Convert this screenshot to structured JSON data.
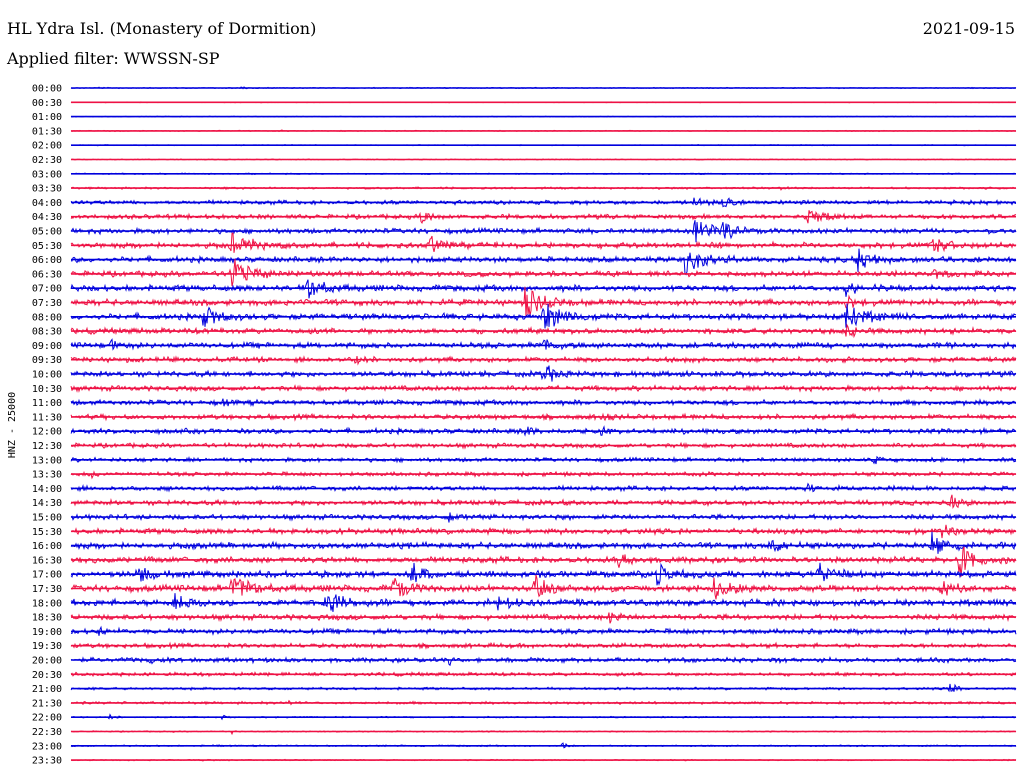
{
  "header": {
    "station": "HL Ydra Isl. (Monastery of Dormition)",
    "date": "2021-09-15",
    "filter": "Applied filter: WWSSN-SP"
  },
  "chart_data": {
    "type": "line",
    "ylabel": "HNZ - 25000",
    "colors": [
      "#0000dd",
      "#ee1144"
    ],
    "rows": [
      {
        "label": "00:00",
        "noise": 0.4,
        "events": [
          [
            0.03,
            0.25,
            6
          ],
          [
            0.18,
            0.45,
            8
          ]
        ]
      },
      {
        "label": "00:30",
        "noise": 0.3,
        "events": [
          [
            0.17,
            0.25,
            3
          ]
        ]
      },
      {
        "label": "01:00",
        "noise": 0.3,
        "events": []
      },
      {
        "label": "01:30",
        "noise": 0.4,
        "events": [
          [
            0.22,
            0.3,
            5
          ]
        ]
      },
      {
        "label": "02:00",
        "noise": 0.4,
        "events": []
      },
      {
        "label": "02:30",
        "noise": 0.4,
        "events": [
          [
            0.93,
            0.2,
            4
          ]
        ]
      },
      {
        "label": "03:00",
        "noise": 0.5,
        "events": [
          [
            0.12,
            0.2,
            4
          ]
        ]
      },
      {
        "label": "03:30",
        "noise": 0.8,
        "events": [
          [
            0.16,
            0.5,
            6
          ],
          [
            0.75,
            0.5,
            6
          ],
          [
            0.92,
            0.3,
            4
          ]
        ]
      },
      {
        "label": "04:00",
        "noise": 1.6,
        "events": [
          [
            0.66,
            3.5,
            8
          ],
          [
            0.69,
            3.0,
            8
          ]
        ]
      },
      {
        "label": "04:30",
        "noise": 1.8,
        "events": [
          [
            0.37,
            3.0,
            10
          ],
          [
            0.78,
            4.0,
            12
          ]
        ]
      },
      {
        "label": "05:00",
        "noise": 2.0,
        "events": [
          [
            0.66,
            6.0,
            15
          ],
          [
            0.69,
            4.0,
            12
          ]
        ]
      },
      {
        "label": "05:30",
        "noise": 2.2,
        "events": [
          [
            0.17,
            9.0,
            14
          ],
          [
            0.38,
            5.0,
            12
          ],
          [
            0.91,
            5.0,
            12
          ]
        ]
      },
      {
        "label": "06:00",
        "noise": 2.2,
        "events": [
          [
            0.65,
            8.0,
            16
          ],
          [
            0.83,
            6.0,
            14
          ]
        ]
      },
      {
        "label": "06:30",
        "noise": 2.2,
        "events": [
          [
            0.17,
            8.0,
            16
          ],
          [
            0.91,
            3.0,
            10
          ]
        ]
      },
      {
        "label": "07:00",
        "noise": 2.4,
        "events": [
          [
            0.25,
            6.0,
            14
          ],
          [
            0.82,
            4.0,
            10
          ]
        ]
      },
      {
        "label": "07:30",
        "noise": 2.4,
        "events": [
          [
            0.48,
            8.0,
            16
          ],
          [
            0.82,
            3.0,
            10
          ]
        ]
      },
      {
        "label": "08:00",
        "noise": 2.4,
        "events": [
          [
            0.14,
            6.0,
            14
          ],
          [
            0.5,
            8.0,
            16
          ],
          [
            0.82,
            7.0,
            16
          ]
        ]
      },
      {
        "label": "08:30",
        "noise": 2.2,
        "events": [
          [
            0.82,
            3.0,
            10
          ]
        ]
      },
      {
        "label": "09:00",
        "noise": 2.2,
        "events": [
          [
            0.04,
            3.0,
            8
          ],
          [
            0.5,
            4.0,
            10
          ]
        ]
      },
      {
        "label": "09:30",
        "noise": 2.0,
        "events": [
          [
            0.3,
            2.0,
            8
          ]
        ]
      },
      {
        "label": "10:00",
        "noise": 2.2,
        "events": [
          [
            0.5,
            5.0,
            12
          ]
        ]
      },
      {
        "label": "10:30",
        "noise": 2.0,
        "events": []
      },
      {
        "label": "11:00",
        "noise": 2.0,
        "events": [
          [
            0.16,
            2.0,
            6
          ]
        ]
      },
      {
        "label": "11:30",
        "noise": 2.0,
        "events": [
          [
            0.56,
            2.0,
            6
          ]
        ]
      },
      {
        "label": "12:00",
        "noise": 2.0,
        "events": [
          [
            0.48,
            2.5,
            8
          ],
          [
            0.56,
            2.5,
            8
          ]
        ]
      },
      {
        "label": "12:30",
        "noise": 1.8,
        "events": []
      },
      {
        "label": "13:00",
        "noise": 1.6,
        "events": [
          [
            0.85,
            1.5,
            5
          ]
        ]
      },
      {
        "label": "13:30",
        "noise": 1.6,
        "events": [
          [
            0.02,
            2.0,
            5
          ]
        ]
      },
      {
        "label": "14:00",
        "noise": 1.8,
        "events": [
          [
            0.78,
            2.5,
            6
          ]
        ]
      },
      {
        "label": "14:30",
        "noise": 2.0,
        "events": [
          [
            0.93,
            4.0,
            8
          ]
        ]
      },
      {
        "label": "15:00",
        "noise": 2.0,
        "events": [
          [
            0.4,
            2.5,
            6
          ]
        ]
      },
      {
        "label": "15:30",
        "noise": 2.2,
        "events": [
          [
            0.92,
            4.0,
            8
          ]
        ]
      },
      {
        "label": "16:00",
        "noise": 2.4,
        "events": [
          [
            0.74,
            5.0,
            10
          ],
          [
            0.91,
            6.0,
            12
          ]
        ]
      },
      {
        "label": "16:30",
        "noise": 2.4,
        "events": [
          [
            0.58,
            4.0,
            10
          ],
          [
            0.94,
            8.0,
            14
          ]
        ]
      },
      {
        "label": "17:00",
        "noise": 2.6,
        "events": [
          [
            0.07,
            4.0,
            12
          ],
          [
            0.36,
            6.0,
            12
          ],
          [
            0.62,
            5.0,
            12
          ],
          [
            0.79,
            6.0,
            14
          ]
        ]
      },
      {
        "label": "17:30",
        "noise": 2.6,
        "events": [
          [
            0.17,
            8.0,
            16
          ],
          [
            0.34,
            6.0,
            14
          ],
          [
            0.49,
            7.0,
            14
          ],
          [
            0.68,
            5.0,
            12
          ],
          [
            0.92,
            4.0,
            10
          ]
        ]
      },
      {
        "label": "18:00",
        "noise": 2.6,
        "events": [
          [
            0.11,
            5.0,
            12
          ],
          [
            0.27,
            7.0,
            14
          ],
          [
            0.45,
            5.0,
            12
          ]
        ]
      },
      {
        "label": "18:30",
        "noise": 2.2,
        "events": [
          [
            0.57,
            3.0,
            8
          ]
        ]
      },
      {
        "label": "19:00",
        "noise": 2.0,
        "events": [
          [
            0.03,
            2.0,
            6
          ]
        ]
      },
      {
        "label": "19:30",
        "noise": 1.8,
        "events": []
      },
      {
        "label": "20:00",
        "noise": 1.8,
        "events": [
          [
            0.08,
            2.0,
            5
          ],
          [
            0.4,
            2.0,
            6
          ]
        ]
      },
      {
        "label": "20:30",
        "noise": 1.4,
        "events": []
      },
      {
        "label": "21:00",
        "noise": 1.0,
        "events": [
          [
            0.93,
            3.0,
            6
          ]
        ]
      },
      {
        "label": "21:30",
        "noise": 1.0,
        "events": [
          [
            0.23,
            1.5,
            4
          ]
        ]
      },
      {
        "label": "22:00",
        "noise": 0.6,
        "events": [
          [
            0.04,
            1.5,
            5
          ],
          [
            0.16,
            1.5,
            4
          ]
        ]
      },
      {
        "label": "22:30",
        "noise": 0.5,
        "events": [
          [
            0.17,
            1.0,
            3
          ]
        ]
      },
      {
        "label": "23:00",
        "noise": 0.6,
        "events": [
          [
            0.15,
            1.0,
            4
          ],
          [
            0.52,
            1.5,
            4
          ]
        ]
      },
      {
        "label": "23:30",
        "noise": 0.5,
        "events": [
          [
            0.14,
            1.0,
            3
          ]
        ]
      }
    ]
  }
}
